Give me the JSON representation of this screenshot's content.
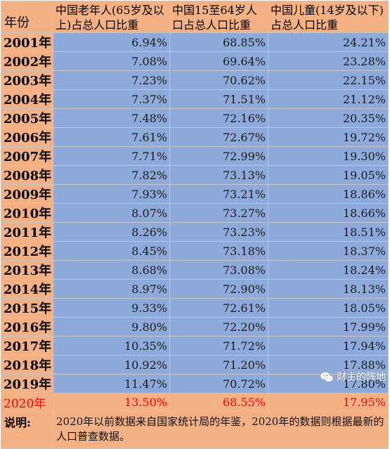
{
  "header": {
    "year_col": "年份",
    "elderly_col": "中国老年人(65岁及以上)占总人口比重",
    "working_col": "中国15至64岁人口占总人口比重",
    "children_col": "中国儿童(14岁及以下)占总人口比重"
  },
  "rows": [
    {
      "year": "2001年",
      "elderly": "6.94%",
      "working": "68.85%",
      "children": "24.21%"
    },
    {
      "year": "2002年",
      "elderly": "7.08%",
      "working": "69.64%",
      "children": "23.28%"
    },
    {
      "year": "2003年",
      "elderly": "7.23%",
      "working": "70.62%",
      "children": "22.15%"
    },
    {
      "year": "2004年",
      "elderly": "7.37%",
      "working": "71.51%",
      "children": "21.12%"
    },
    {
      "year": "2005年",
      "elderly": "7.48%",
      "working": "72.16%",
      "children": "20.35%"
    },
    {
      "year": "2006年",
      "elderly": "7.61%",
      "working": "72.67%",
      "children": "19.72%"
    },
    {
      "year": "2007年",
      "elderly": "7.71%",
      "working": "72.99%",
      "children": "19.30%"
    },
    {
      "year": "2008年",
      "elderly": "7.82%",
      "working": "73.13%",
      "children": "19.05%"
    },
    {
      "year": "2009年",
      "elderly": "7.93%",
      "working": "73.21%",
      "children": "18.86%"
    },
    {
      "year": "2010年",
      "elderly": "8.07%",
      "working": "73.27%",
      "children": "18.66%"
    },
    {
      "year": "2011年",
      "elderly": "8.26%",
      "working": "73.23%",
      "children": "18.51%"
    },
    {
      "year": "2012年",
      "elderly": "8.45%",
      "working": "73.18%",
      "children": "18.37%"
    },
    {
      "year": "2013年",
      "elderly": "8.68%",
      "working": "73.08%",
      "children": "18.24%"
    },
    {
      "year": "2014年",
      "elderly": "8.97%",
      "working": "72.90%",
      "children": "18.13%"
    },
    {
      "year": "2015年",
      "elderly": "9.33%",
      "working": "72.61%",
      "children": "18.05%"
    },
    {
      "year": "2016年",
      "elderly": "9.80%",
      "working": "72.20%",
      "children": "17.99%"
    },
    {
      "year": "2017年",
      "elderly": "10.35%",
      "working": "71.72%",
      "children": "17.94%"
    },
    {
      "year": "2018年",
      "elderly": "10.92%",
      "working": "71.20%",
      "children": "17.88%"
    },
    {
      "year": "2019年",
      "elderly": "11.47%",
      "working": "70.72%",
      "children": "17.80%"
    }
  ],
  "highlight": {
    "year": "2020年",
    "elderly": "13.50%",
    "working": "68.55%",
    "children": "17.95%"
  },
  "note": {
    "label": "说明:",
    "text": "2020年以前数据来自国家统计局的年鉴，2020年的数据则根据最新的人口普查数据。"
  },
  "watermark": {
    "text": "财主的阵地",
    "icon": "wechat-icon"
  },
  "colors": {
    "header_bg": "#f4b183",
    "data_bg": "#8eaadb",
    "highlight_text": "#ff0000"
  }
}
